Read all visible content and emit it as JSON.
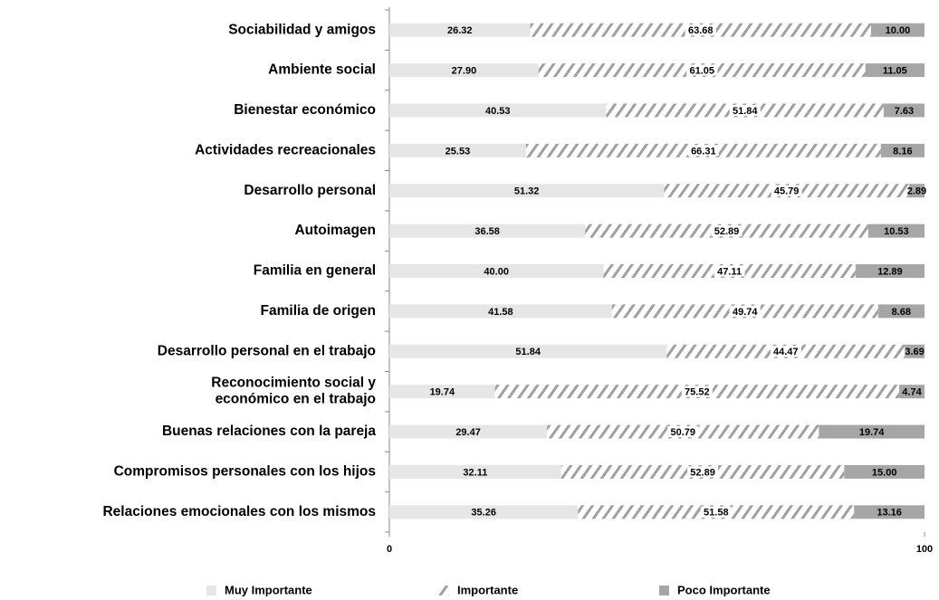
{
  "chart_data": {
    "type": "stacked_bar_horizontal",
    "categories": [
      "Sociabilidad y amigos",
      "Ambiente social",
      "Bienestar económico",
      "Actividades recreacionales",
      "Desarrollo personal",
      "Autoimagen",
      "Familia en general",
      "Familia de origen",
      "Desarrollo personal en el trabajo",
      "Reconocimiento social y\neconómico en el trabajo",
      "Buenas relaciones con la pareja",
      "Compromisos personales con los hijos",
      "Relaciones emocionales con los mismos"
    ],
    "series": [
      {
        "name": "Muy Importante",
        "color": "#e6e6e6",
        "hatch": false,
        "values": [
          26.32,
          27.9,
          40.53,
          25.53,
          51.32,
          36.58,
          40.0,
          41.58,
          51.84,
          19.74,
          29.47,
          32.11,
          35.26
        ],
        "value_labels": [
          "26.32",
          "27.90",
          "40.53",
          "25.53",
          "51.32",
          "36.58",
          "40.00",
          "41.58",
          "51.84",
          "19.74",
          "29.47",
          "32.11",
          "35.26"
        ]
      },
      {
        "name": "Importante",
        "color": "#a0a0a0",
        "hatch": true,
        "values": [
          63.68,
          61.05,
          51.84,
          66.31,
          45.79,
          52.89,
          47.11,
          49.74,
          44.47,
          75.52,
          50.79,
          52.89,
          51.58
        ],
        "value_labels": [
          "63.68",
          "61.05",
          "51.84",
          "66.31",
          "45.79",
          "52.89",
          "47.11",
          "49.74",
          "44.47",
          "75.52",
          "50.79",
          "52.89",
          "51.58"
        ]
      },
      {
        "name": "Poco Importante",
        "color": "#a6a6a6",
        "hatch": false,
        "values": [
          10.0,
          11.05,
          7.63,
          8.16,
          2.89,
          10.53,
          12.89,
          8.68,
          3.69,
          4.74,
          19.74,
          15.0,
          13.16
        ],
        "value_labels": [
          "10.00",
          "11.05",
          "7.63",
          "8.16",
          "2.89",
          "10.53",
          "12.89",
          "8.68",
          "3.69",
          "4.74",
          "19.74",
          "15.00",
          "13.16"
        ]
      }
    ],
    "xlim": [
      0,
      100
    ],
    "xticks": [
      0,
      100
    ]
  }
}
